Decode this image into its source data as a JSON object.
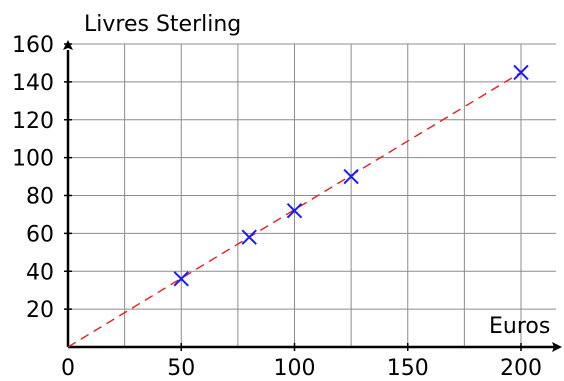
{
  "chart_data": {
    "type": "scatter",
    "ylabel": "Livres Sterling",
    "xlabel": "Euros",
    "xlim": [
      0,
      210
    ],
    "ylim": [
      0,
      160
    ],
    "x_ticks": [
      0,
      50,
      100,
      150,
      200
    ],
    "y_ticks": [
      20,
      40,
      60,
      80,
      100,
      120,
      140,
      160
    ],
    "grid": true,
    "grid_x_step": 25,
    "grid_y_step": 20,
    "series": [
      {
        "marker": "cross",
        "color": "#1a1aff",
        "points": [
          {
            "x": 50,
            "y": 36
          },
          {
            "x": 80,
            "y": 58
          },
          {
            "x": 100,
            "y": 72
          },
          {
            "x": 125,
            "y": 90
          },
          {
            "x": 200,
            "y": 145
          }
        ]
      }
    ],
    "trend_line": {
      "style": "dashed",
      "color": "#e02020",
      "from": {
        "x": 0,
        "y": 0
      },
      "to": {
        "x": 200,
        "y": 145
      }
    }
  }
}
